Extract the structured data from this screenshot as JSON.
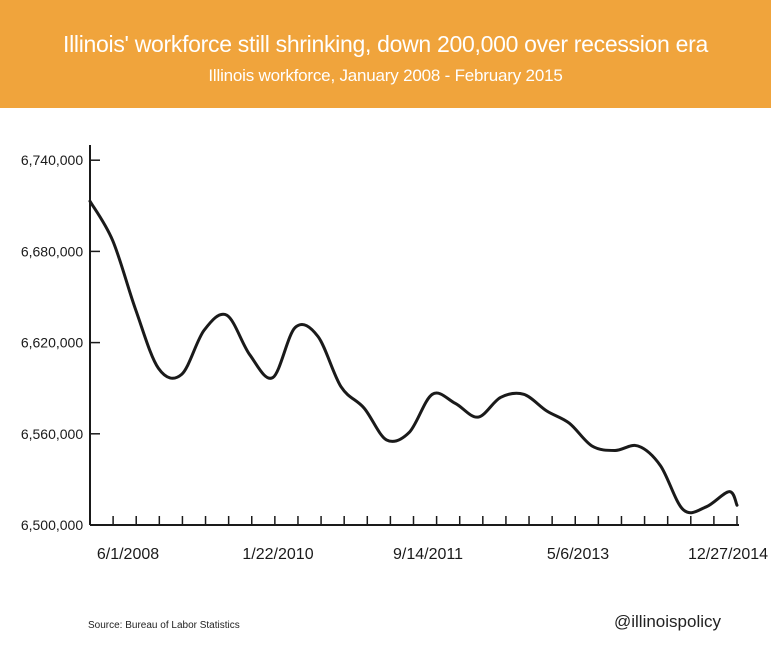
{
  "header": {
    "title": "Illinois' workforce still shrinking, down 200,000 over recession era",
    "subtitle": "Illinois workforce, January 2008 - February 2015",
    "background_color": "#f0a43c"
  },
  "footer": {
    "source": "Source: Bureau of Labor Statistics",
    "handle": "@illinoispolicy"
  },
  "chart_data": {
    "type": "line",
    "title": "Illinois' workforce still shrinking, down 200,000 over recession era",
    "subtitle": "Illinois workforce, January 2008 - February 2015",
    "xlabel": "",
    "ylabel": "",
    "x_tick_labels": [
      "6/1/2008",
      "1/22/2010",
      "9/14/2011",
      "5/6/2013",
      "12/27/2014"
    ],
    "x_tick_dates": [
      "2008-06-01",
      "2010-01-22",
      "2011-09-14",
      "2013-05-06",
      "2014-12-27"
    ],
    "y_tick_labels": [
      "6,740,000",
      "6,680,000",
      "6,620,000",
      "6,560,000",
      "6,500,000"
    ],
    "ylim": [
      6500000,
      6750000
    ],
    "xlim": [
      "2008-01-01",
      "2015-02-01"
    ],
    "line_color": "#1a1a1a",
    "grid": false,
    "series": [
      {
        "name": "",
        "x": [
          "2008-01-01",
          "2008-04-01",
          "2008-07-01",
          "2008-10-01",
          "2009-01-01",
          "2009-04-01",
          "2009-07-01",
          "2009-10-01",
          "2010-01-01",
          "2010-04-01",
          "2010-07-01",
          "2010-10-01",
          "2011-01-01",
          "2011-04-01",
          "2011-07-01",
          "2011-10-01",
          "2012-01-01",
          "2012-04-01",
          "2012-07-01",
          "2012-10-01",
          "2013-01-01",
          "2013-04-01",
          "2013-07-01",
          "2013-10-01",
          "2014-01-01",
          "2014-04-01",
          "2014-07-01",
          "2014-10-01",
          "2015-01-01",
          "2015-02-01"
        ],
        "values": [
          6713000,
          6687000,
          6642000,
          6603000,
          6599000,
          6628000,
          6638000,
          6612000,
          6597000,
          6630000,
          6624000,
          6591000,
          6577000,
          6556000,
          6561000,
          6586000,
          6580000,
          6571000,
          6584000,
          6586000,
          6575000,
          6567000,
          6552000,
          6549000,
          6552000,
          6539000,
          6510000,
          6512000,
          6522000,
          6513000
        ]
      }
    ]
  }
}
